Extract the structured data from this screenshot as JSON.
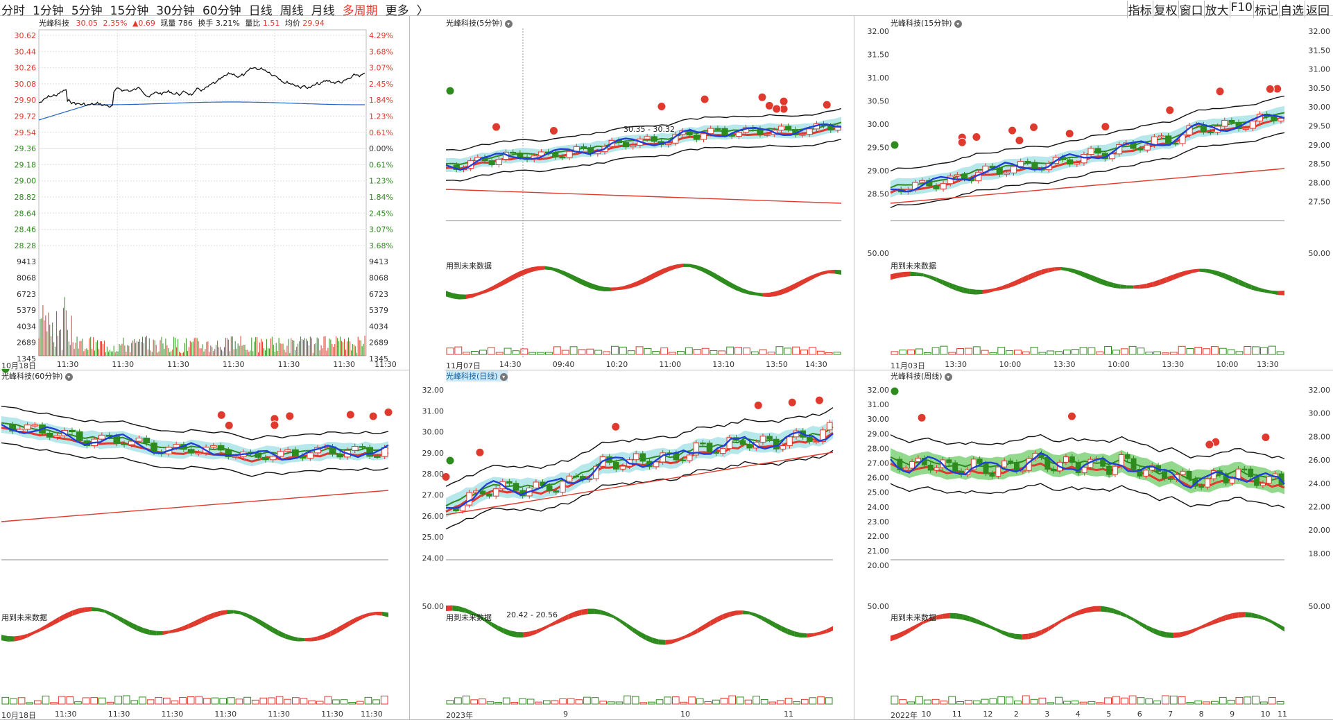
{
  "tabs": [
    {
      "label": "分时",
      "active": false
    },
    {
      "label": "1分钟",
      "active": false
    },
    {
      "label": "5分钟",
      "active": false
    },
    {
      "label": "15分钟",
      "active": false
    },
    {
      "label": "30分钟",
      "active": false
    },
    {
      "label": "60分钟",
      "active": false
    },
    {
      "label": "日线",
      "active": false
    },
    {
      "label": "周线",
      "active": false
    },
    {
      "label": "月线",
      "active": false
    },
    {
      "label": "多周期",
      "active": true
    },
    {
      "label": "更多",
      "active": false
    },
    {
      "label": "〉",
      "active": false
    }
  ],
  "right_tools": [
    "指标",
    "复权",
    "窗口",
    "放大",
    "F10",
    "标记",
    "自选",
    "返回"
  ],
  "intraday": {
    "title": "光峰科技",
    "price": "30.05",
    "pct": "2.35%",
    "change": "▲0.69",
    "volume_label": "现量",
    "volume": "786",
    "turnover_label": "换手",
    "turnover": "3.21%",
    "ratio_label": "量比",
    "ratio": "1.51",
    "avg_label": "均价",
    "avg": "29.94",
    "left_prices": [
      "30.62",
      "30.44",
      "30.26",
      "30.08",
      "29.90",
      "29.72",
      "29.54",
      "29.36",
      "29.18",
      "29.00",
      "28.82",
      "28.64",
      "28.46",
      "28.28"
    ],
    "right_pcts": [
      "4.29%",
      "3.68%",
      "3.07%",
      "2.45%",
      "1.84%",
      "1.23%",
      "0.61%",
      "0.00%",
      "0.61%",
      "1.23%",
      "1.84%",
      "2.45%",
      "3.07%",
      "3.68%"
    ],
    "vol_ticks": [
      "9413",
      "8068",
      "6723",
      "5379",
      "4034",
      "2689",
      "1345"
    ],
    "time_labels": [
      "10月18日",
      "11:30",
      "11:30",
      "11:30",
      "11:30",
      "11:30",
      "11:30",
      "11:30"
    ]
  },
  "p5": {
    "title": "光峰科技(5分钟)",
    "range_note": "30.35 - 30.32",
    "future_note": "用到未来数据",
    "time_labels": [
      "11月07日",
      "14:30",
      "09:40",
      "10:20",
      "11:00",
      "13:10",
      "13:50",
      "14:30"
    ]
  },
  "p15": {
    "title": "光峰科技(15分钟)",
    "future_note": "用到未来数据",
    "y_ticks": [
      "32.00",
      "31.50",
      "31.00",
      "30.50",
      "30.00",
      "29.50",
      "29.00",
      "28.50"
    ],
    "right_ticks": [
      "32.00",
      "31.50",
      "31.00",
      "30.50",
      "30.00",
      "29.50",
      "29.00",
      "28.50",
      "28.00",
      "27.50"
    ],
    "osc_tick": "50.00",
    "time_labels": [
      "11月03日",
      "13:30",
      "10:00",
      "13:30",
      "10:00",
      "13:30",
      "10:00",
      "13:30"
    ]
  },
  "p60": {
    "title": "光峰科技(60分钟)",
    "future_note": "用到未来数据",
    "time_labels": [
      "10月18日",
      "11:30",
      "11:30",
      "11:30",
      "11:30",
      "11:30",
      "11:30",
      "11:30"
    ]
  },
  "pday": {
    "title": "光峰科技(日线)",
    "future_note": "用到未来数据",
    "range_note": "20.42 - 20.56",
    "y_ticks": [
      "32.00",
      "31.00",
      "30.00",
      "29.00",
      "28.00",
      "27.00",
      "26.00",
      "25.00",
      "24.00"
    ],
    "osc_tick": "50.00",
    "time_labels": [
      "2023年",
      "9",
      "10",
      "11"
    ]
  },
  "pweek": {
    "title": "光峰科技(周线)",
    "future_note": "用到未来数据",
    "y_ticks": [
      "32.00",
      "31.00",
      "30.00",
      "29.00",
      "28.00",
      "27.00",
      "26.00",
      "25.00",
      "24.00",
      "23.00",
      "22.00",
      "21.00",
      "20.00"
    ],
    "right_ticks": [
      "32.00",
      "30.00",
      "28.00",
      "26.00",
      "24.00",
      "22.00",
      "20.00",
      "18.00"
    ],
    "osc_tick": "50.00",
    "time_labels": [
      "2022年",
      "10",
      "11",
      "12",
      "2",
      "3",
      "4",
      "5",
      "6",
      "7",
      "8",
      "9",
      "10",
      "11"
    ]
  },
  "colors": {
    "up": "#e0392d",
    "down": "#2e8b1e",
    "blue": "#1f3fd6",
    "black": "#111",
    "cyan": "#a9e3e8",
    "green_fill": "#7fd27a"
  }
}
